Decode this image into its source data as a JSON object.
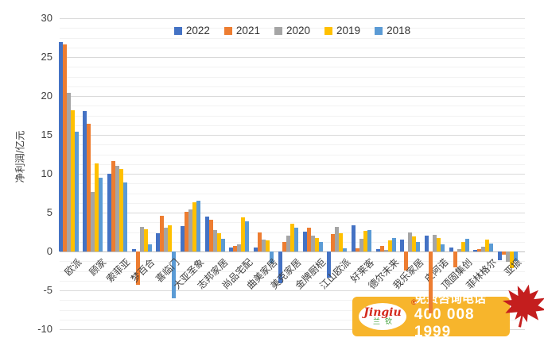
{
  "chart": {
    "y_axis_title": "净利润/亿元",
    "y_tick_labels": [
      "30",
      "25",
      "20",
      "15",
      "10",
      "5",
      "0",
      "-5",
      "-10"
    ],
    "y_tick_values": [
      30,
      25,
      20,
      15,
      10,
      5,
      0,
      -5,
      -10
    ]
  },
  "chart_data": {
    "type": "bar",
    "title": "",
    "xlabel": "",
    "ylabel": "净利润/亿元",
    "ylim": [
      -10,
      30
    ],
    "ytick_step": 5,
    "minor_grid_step": 1.25,
    "grid": true,
    "legend_position": "top",
    "categories": [
      "欧派",
      "顾家",
      "索菲亚",
      "梦百合",
      "喜临门",
      "大亚圣象",
      "志邦家居",
      "尚品宅配",
      "曲美家居",
      "美克家居",
      "金牌厨柜",
      "江山欧派",
      "好莱客",
      "德尔未来",
      "我乐家居",
      "皮阿诺",
      "顶固集创",
      "菲林格尔",
      "亚振"
    ],
    "series": [
      {
        "name": "2022",
        "color": "#4472C4",
        "values": [
          26.9,
          18.1,
          10.0,
          0.3,
          2.3,
          3.3,
          4.5,
          0.5,
          0.5,
          -4.1,
          2.6,
          -3.4,
          3.4,
          0.3,
          1.5,
          2.0,
          0.5,
          0.2,
          -1.1
        ]
      },
      {
        "name": "2021",
        "color": "#ED7D31",
        "values": [
          26.6,
          16.4,
          11.6,
          -4.3,
          4.6,
          5.1,
          4.1,
          0.7,
          2.4,
          1.2,
          3.1,
          2.2,
          0.4,
          0.7,
          -2.4,
          -8.0,
          -2.0,
          0.3,
          -0.4
        ]
      },
      {
        "name": "2020",
        "color": "#A5A5A5",
        "values": [
          20.4,
          7.7,
          11.0,
          3.2,
          3.1,
          5.4,
          2.8,
          0.9,
          1.5,
          2.0,
          2.0,
          3.2,
          1.6,
          0.2,
          2.4,
          2.1,
          0.3,
          0.6,
          -1.3
        ]
      },
      {
        "name": "2019",
        "color": "#FFC000",
        "values": [
          18.2,
          11.3,
          10.6,
          2.9,
          3.4,
          6.3,
          2.3,
          4.4,
          1.4,
          3.6,
          1.7,
          2.3,
          2.7,
          1.4,
          1.9,
          1.7,
          1.2,
          1.5,
          -2.1
        ]
      },
      {
        "name": "2018",
        "color": "#5B9BD5",
        "values": [
          15.4,
          9.5,
          8.9,
          0.9,
          -6.0,
          6.5,
          1.6,
          3.9,
          -1.5,
          3.1,
          1.2,
          0.4,
          2.8,
          1.7,
          1.2,
          0.9,
          1.6,
          1.0,
          -1.2
        ]
      }
    ]
  },
  "watermark": {
    "brand_latin": "Jingiu",
    "brand_cn": "兰钦",
    "reg": "®",
    "line1": "免费咨询电话",
    "line2": "400 008 1999",
    "colors": {
      "box": "#F7B52C",
      "leaf": "#C41E1E",
      "script_red": "#D42B1E",
      "brand_green": "#3DA035"
    }
  }
}
